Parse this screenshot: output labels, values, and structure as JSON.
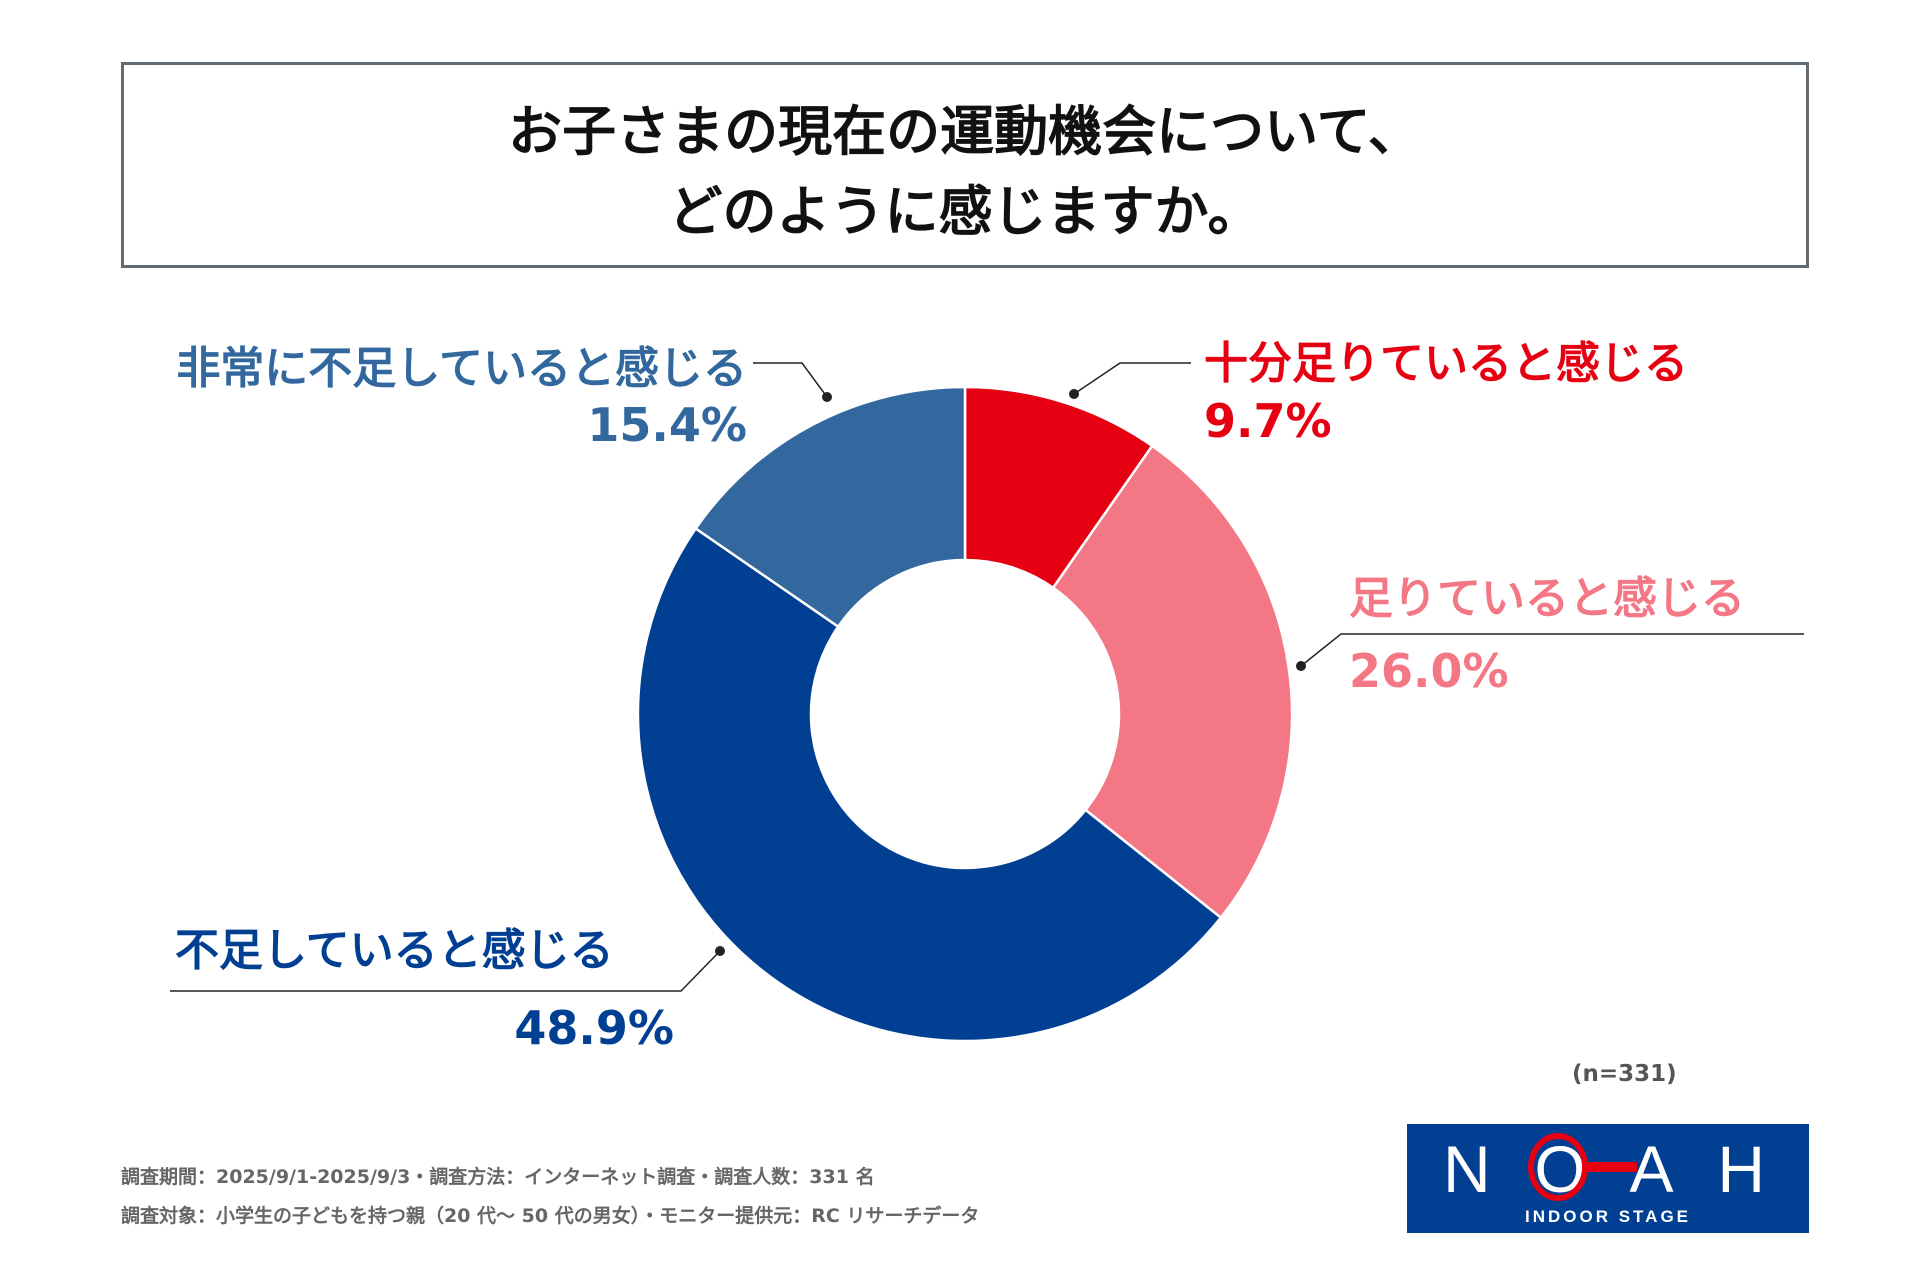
{
  "title": {
    "line1": "お子さまの現在の運動機会について、",
    "line2": "どのように感じますか。"
  },
  "chart_data": {
    "type": "pie",
    "variant": "donut",
    "title": "お子さまの現在の運動機会について、どのように感じますか。",
    "start": "top, clockwise",
    "slices": [
      {
        "label": "十分足りていると感じる",
        "value": 9.7,
        "value_label": "9.7%",
        "color": "#e60012"
      },
      {
        "label": "足りていると感じる",
        "value": 26.0,
        "value_label": "26.0%",
        "color": "#f47786"
      },
      {
        "label": "不足していると感じる",
        "value": 48.9,
        "value_label": "48.9%",
        "color": "#003f92"
      },
      {
        "label": "非常に不足していると感じる",
        "value": 15.4,
        "value_label": "15.4%",
        "color": "#33689f"
      }
    ]
  },
  "sample_size": "(n=331)",
  "footnotes": [
    "調査期間：2025/9/1-2025/9/3・調査方法：インターネット調査・調査人数：331 名",
    "調査対象：小学生の子どもを持つ親（20 代～ 50 代の男女）・モニター提供元：RC リサーチデータ"
  ],
  "logo": {
    "name": "NOAH",
    "tagline": "INDOOR STAGE",
    "bg_color": "#003f92",
    "accent_color": "#e60012"
  }
}
